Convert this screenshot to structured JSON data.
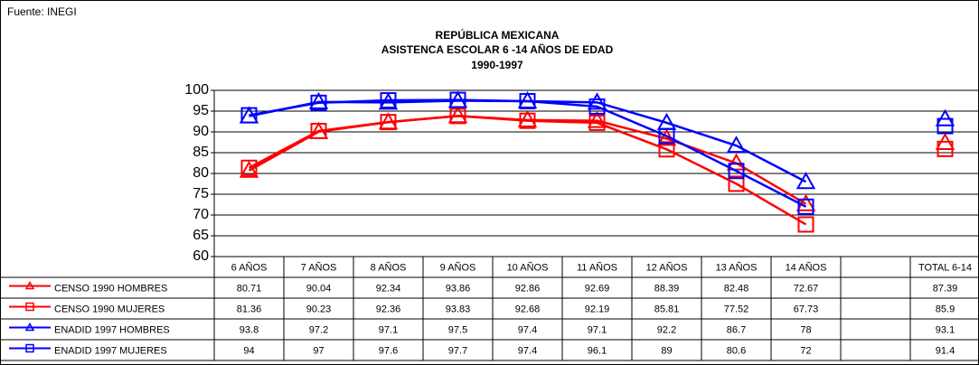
{
  "chart_data": {
    "type": "line",
    "source": "Fuente: INEGI",
    "title": [
      "REPÚBLICA MEXICANA",
      "ASISTENCA ESCOLAR 6 -14 AÑOS DE EDAD",
      "1990-1997"
    ],
    "categories": [
      "6 AÑOS",
      "7 AÑOS",
      "8 AÑOS",
      "9 AÑOS",
      "10 AÑOS",
      "11 AÑOS",
      "12 AÑOS",
      "13 AÑOS",
      "14 AÑOS",
      null,
      "TOTAL 6-14"
    ],
    "series": [
      {
        "name": "CENSO 1990 HOMBRES",
        "color": "#ff0000",
        "marker": "triangle",
        "values": [
          80.71,
          90.04,
          92.34,
          93.86,
          92.86,
          92.69,
          88.39,
          82.48,
          72.67,
          null,
          87.39
        ]
      },
      {
        "name": "CENSO 1990 MUJERES",
        "color": "#ff0000",
        "marker": "square",
        "values": [
          81.36,
          90.23,
          92.36,
          93.83,
          92.68,
          92.19,
          85.81,
          77.52,
          67.73,
          null,
          85.9
        ]
      },
      {
        "name": "ENADID 1997 HOMBRES",
        "color": "#0000ff",
        "marker": "triangle",
        "values": [
          93.8,
          97.2,
          97.1,
          97.5,
          97.4,
          97.1,
          92.2,
          86.7,
          78,
          null,
          93.1
        ]
      },
      {
        "name": "ENADID 1997 MUJERES",
        "color": "#0000ff",
        "marker": "square",
        "values": [
          94,
          97,
          97.6,
          97.7,
          97.4,
          96.1,
          89,
          80.6,
          72,
          null,
          91.4
        ]
      }
    ],
    "ylim": [
      60,
      100
    ],
    "yticks": [
      60,
      65,
      70,
      75,
      80,
      85,
      90,
      95,
      100
    ],
    "grid": true
  }
}
